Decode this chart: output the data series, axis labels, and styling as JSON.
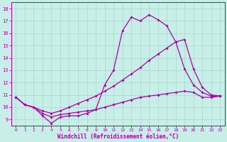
{
  "xlabel": "Windchill (Refroidissement éolien,°C)",
  "xlim": [
    -0.5,
    23.5
  ],
  "ylim": [
    8.5,
    18.5
  ],
  "yticks": [
    9,
    10,
    11,
    12,
    13,
    14,
    15,
    16,
    17,
    18
  ],
  "xticks": [
    0,
    1,
    2,
    3,
    4,
    5,
    6,
    7,
    8,
    9,
    10,
    11,
    12,
    13,
    14,
    15,
    16,
    17,
    18,
    19,
    20,
    21,
    22,
    23
  ],
  "bg_color": "#c8eee8",
  "grid_color": "#a8d8cc",
  "line_color": "#aa00aa",
  "line1_x": [
    0,
    1,
    2,
    3,
    4,
    5,
    6,
    7,
    8,
    9,
    10,
    11,
    12,
    13,
    14,
    15,
    16,
    17,
    18,
    19,
    20,
    21,
    22,
    23
  ],
  "line1_y": [
    10.8,
    10.2,
    10.0,
    9.3,
    8.7,
    9.2,
    9.3,
    9.3,
    9.5,
    9.8,
    11.8,
    13.0,
    16.2,
    17.3,
    17.0,
    17.5,
    17.1,
    16.6,
    15.3,
    13.1,
    11.8,
    11.2,
    10.9,
    10.9
  ],
  "line2_x": [
    0,
    1,
    2,
    3,
    4,
    5,
    6,
    7,
    8,
    9,
    10,
    11,
    12,
    13,
    14,
    15,
    16,
    17,
    18,
    19,
    20,
    21,
    22,
    23
  ],
  "line2_y": [
    10.8,
    10.2,
    10.0,
    9.7,
    9.5,
    9.7,
    10.0,
    10.3,
    10.6,
    10.9,
    11.3,
    11.7,
    12.2,
    12.7,
    13.2,
    13.8,
    14.3,
    14.8,
    15.3,
    15.5,
    13.1,
    11.6,
    11.0,
    10.9
  ],
  "line3_x": [
    0,
    1,
    2,
    3,
    4,
    5,
    6,
    7,
    8,
    9,
    10,
    11,
    12,
    13,
    14,
    15,
    16,
    17,
    18,
    19,
    20,
    21,
    22,
    23
  ],
  "line3_y": [
    10.8,
    10.2,
    10.0,
    9.5,
    9.2,
    9.4,
    9.5,
    9.6,
    9.7,
    9.8,
    10.0,
    10.2,
    10.4,
    10.6,
    10.8,
    10.9,
    11.0,
    11.1,
    11.2,
    11.3,
    11.2,
    10.8,
    10.8,
    10.9
  ]
}
